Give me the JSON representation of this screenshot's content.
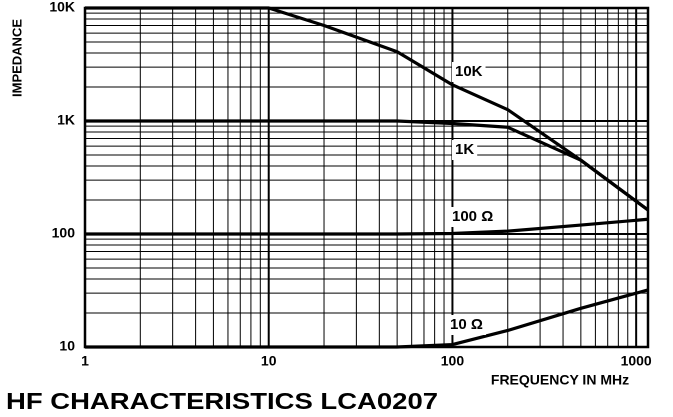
{
  "chart_data": {
    "type": "line",
    "title": "HF CHARACTERISTICS LCA0207",
    "ylabel": "IMPEDANCE",
    "xlabel": "FREQUENCY IN MHz",
    "x": [
      1,
      10,
      20,
      50,
      100,
      200,
      500,
      1160
    ],
    "series": [
      {
        "name": "10K",
        "color": "#000000",
        "values": [
          10000,
          10000,
          7000,
          4100,
          2090,
          1260,
          450,
          163
        ]
      },
      {
        "name": "1K",
        "color": "#000000",
        "values": [
          1000,
          1000,
          1000,
          1000,
          950,
          880,
          450,
          163
        ]
      },
      {
        "name": "100 Ω",
        "color": "#000000",
        "values": [
          100,
          100,
          100,
          100,
          101,
          106,
          120,
          135
        ]
      },
      {
        "name": "10 Ω",
        "color": "#000000",
        "values": [
          10,
          10,
          10,
          10,
          10.5,
          14,
          22,
          32
        ]
      }
    ],
    "xlim": [
      1,
      1160
    ],
    "ylim": [
      10,
      10000
    ],
    "xticks": [
      1,
      10,
      100,
      1000
    ],
    "yticks": [
      10,
      100,
      {
        "value": 1000,
        "label": "1K"
      },
      {
        "value": 10000,
        "label": "10K"
      }
    ],
    "xscale": "log",
    "yscale": "log",
    "grid": true,
    "minor_grid": true
  }
}
